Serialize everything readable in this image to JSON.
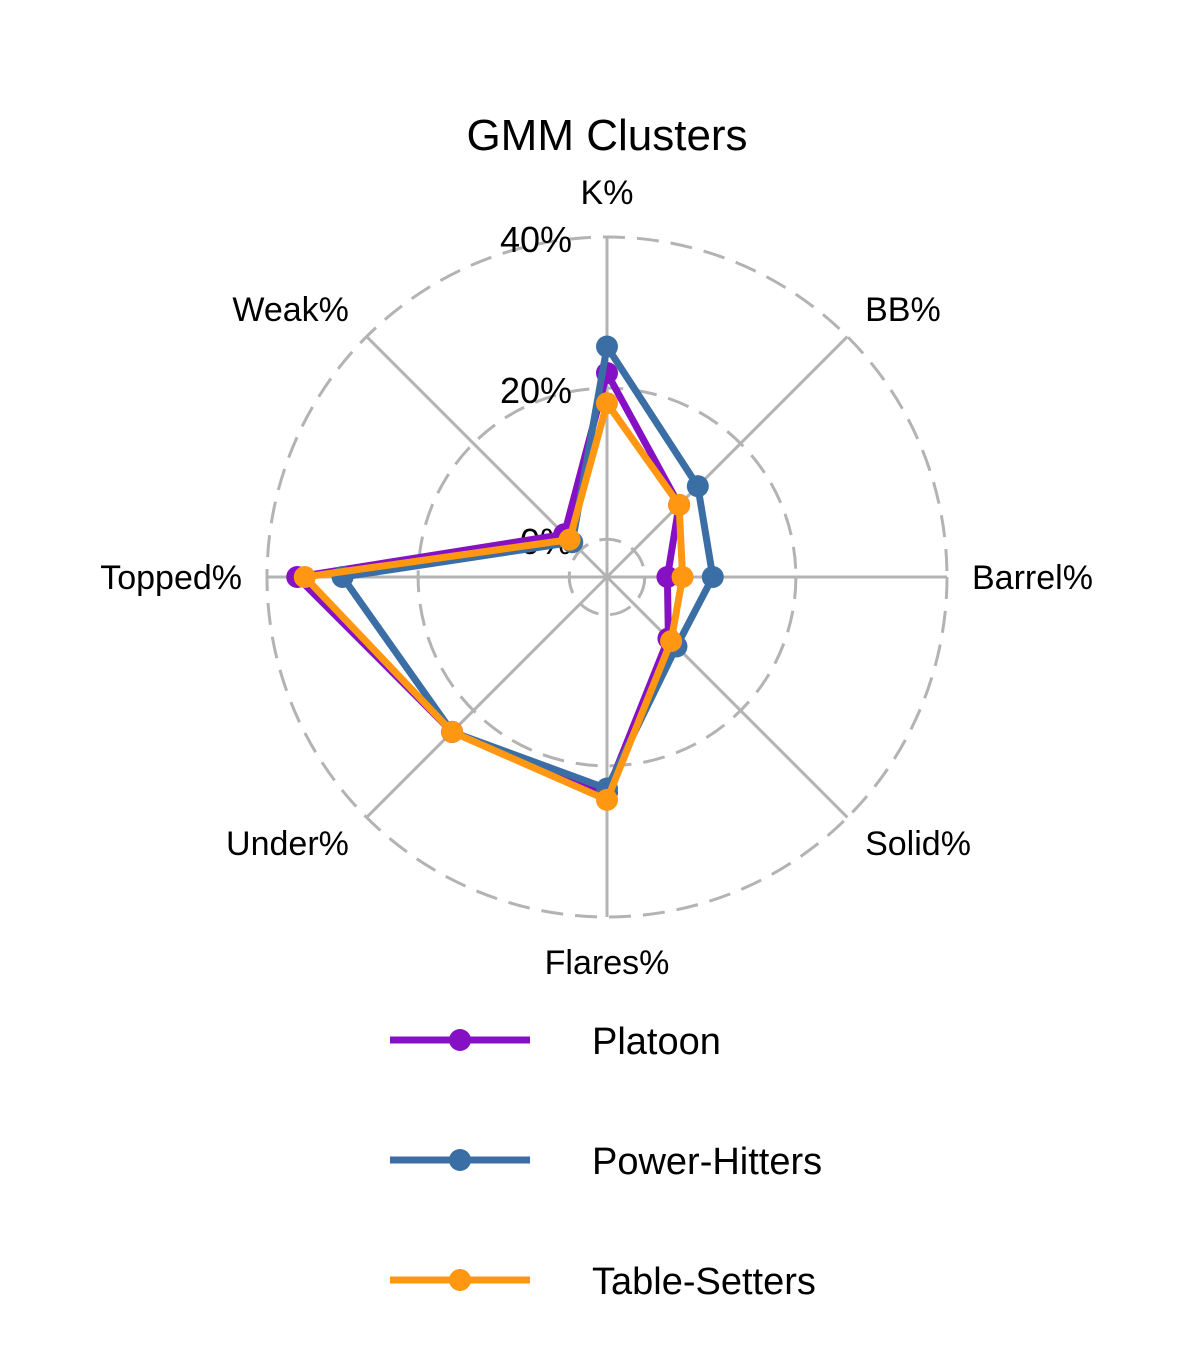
{
  "chart_data": {
    "type": "radar",
    "title": "GMM Clusters",
    "axes": [
      "K%",
      "BB%",
      "Barrel%",
      "Solid%",
      "Flares%",
      "Under%",
      "Topped%",
      "Weak%"
    ],
    "rlim": [
      -5,
      40
    ],
    "r_ticks": [
      0,
      20,
      40
    ],
    "r_tick_labels": [
      "0%",
      "20%",
      "40%"
    ],
    "grid": true,
    "legend_position": "bottom",
    "series": [
      {
        "name": "Platoon",
        "color": "#8510c4",
        "values": [
          22,
          8.5,
          3,
          6.5,
          23.5,
          24,
          36,
          3
        ]
      },
      {
        "name": "Power-Hitters",
        "color": "#3a6ea5",
        "values": [
          25.5,
          12,
          9,
          8,
          23,
          24,
          30,
          1.5
        ]
      },
      {
        "name": "Table-Setters",
        "color": "#ff9712",
        "values": [
          18,
          8.5,
          5,
          7,
          24.5,
          24,
          35,
          2
        ]
      }
    ]
  }
}
